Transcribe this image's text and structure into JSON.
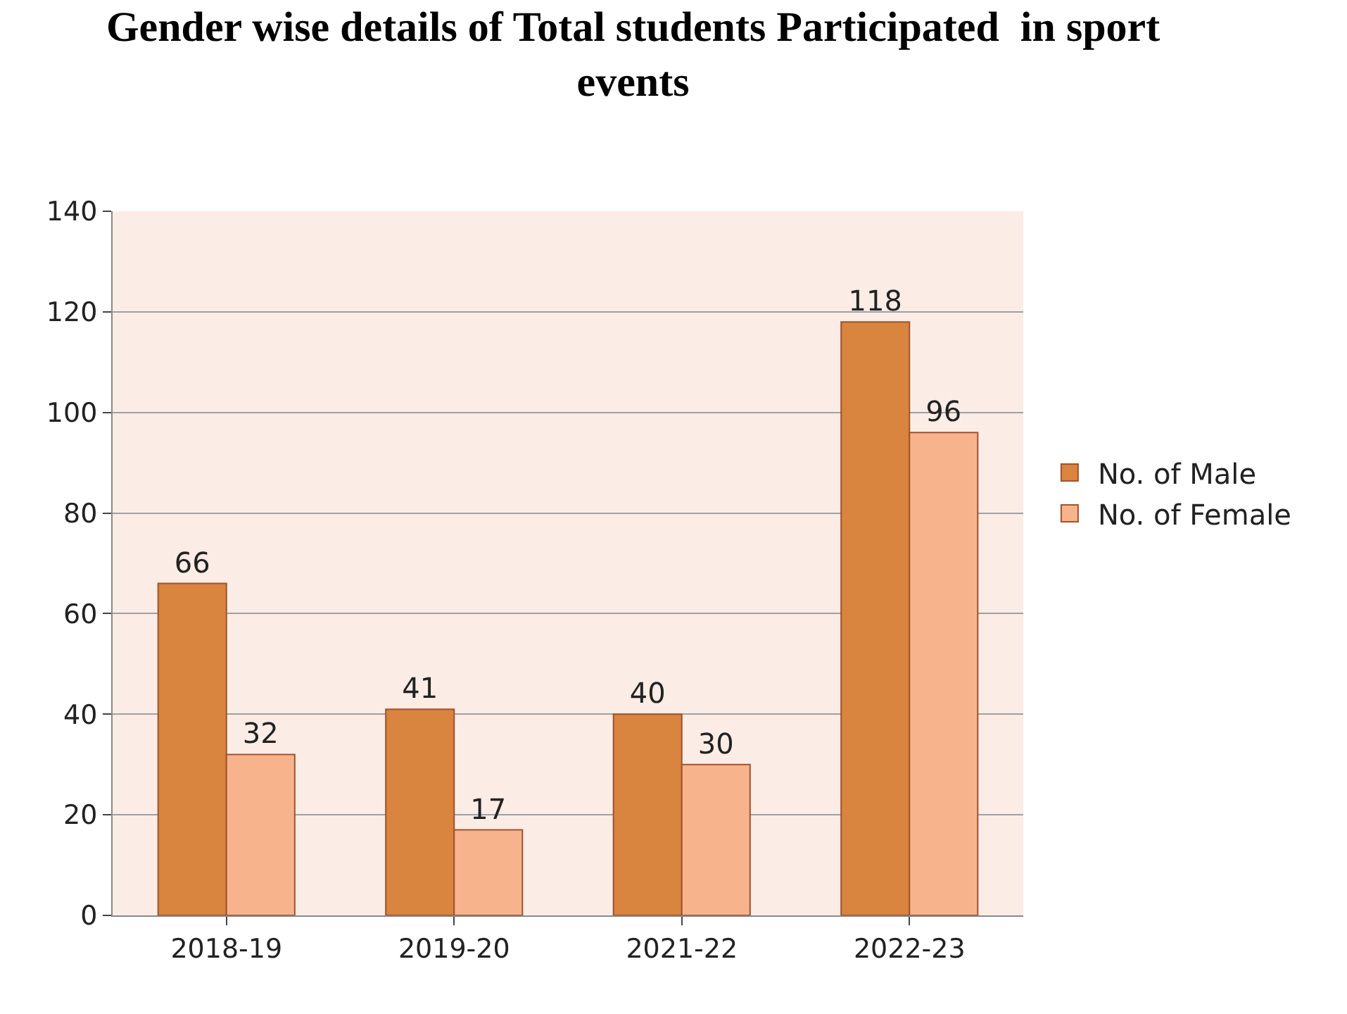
{
  "chart_data": {
    "type": "bar",
    "title": "Gender wise details of Total students Participated  in sport events",
    "categories": [
      "2018-19",
      "2019-20",
      "2021-22",
      "2022-23"
    ],
    "series": [
      {
        "name": "No. of Male",
        "color": "#d9843f",
        "values": [
          66,
          41,
          40,
          118
        ]
      },
      {
        "name": "No. of Female",
        "color": "#f7b48c",
        "values": [
          32,
          17,
          30,
          96
        ]
      }
    ],
    "ylim": [
      0,
      140
    ],
    "yticks": [
      0,
      20,
      40,
      60,
      80,
      100,
      120,
      140
    ],
    "grid": "y",
    "legend": "right",
    "data_labels": true
  }
}
